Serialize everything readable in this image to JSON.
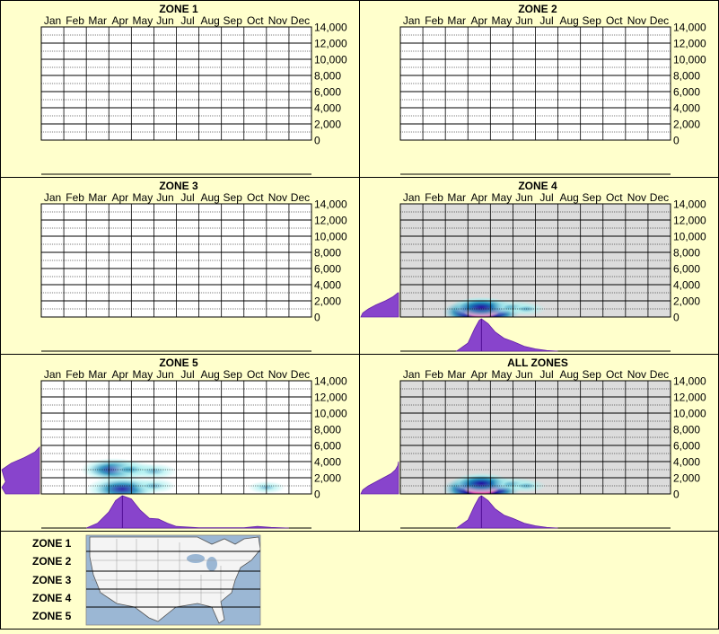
{
  "months": [
    "Jan",
    "Feb",
    "Mar",
    "Apr",
    "May",
    "Jun",
    "Jul",
    "Aug",
    "Sep",
    "Oct",
    "Nov",
    "Dec"
  ],
  "y_ticks": [
    "14,000",
    "12,000",
    "10,000",
    "8,000",
    "6,000",
    "4,000",
    "2,000",
    "0"
  ],
  "legend": {
    "zones": [
      "ZONE 1",
      "ZONE 2",
      "ZONE 3",
      "ZONE 4",
      "ZONE 5"
    ],
    "map_icon": "us-map-icon"
  },
  "colors": {
    "background": "#ffffcc",
    "plot_with_data": "#dcdcdc",
    "plot_empty": "#ffffff",
    "density_fill": "#8844cc",
    "density_stroke": "#6622aa",
    "heat_low": "#aef0f0",
    "heat_mid": "#1a8ab8",
    "heat_high": "#1a10a0",
    "heat_peak": "#ff1493"
  },
  "chart_data": [
    {
      "type": "heatmap",
      "title": "ZONE 1",
      "has_data": false,
      "x_categories": [
        "Jan",
        "Feb",
        "Mar",
        "Apr",
        "May",
        "Jun",
        "Jul",
        "Aug",
        "Sep",
        "Oct",
        "Nov",
        "Dec"
      ],
      "ylim": [
        0,
        14000
      ],
      "hotspots": [],
      "month_density": [],
      "elev_density": []
    },
    {
      "type": "heatmap",
      "title": "ZONE 2",
      "has_data": false,
      "x_categories": [
        "Jan",
        "Feb",
        "Mar",
        "Apr",
        "May",
        "Jun",
        "Jul",
        "Aug",
        "Sep",
        "Oct",
        "Nov",
        "Dec"
      ],
      "ylim": [
        0,
        14000
      ],
      "hotspots": [],
      "month_density": [],
      "elev_density": []
    },
    {
      "type": "heatmap",
      "title": "ZONE 3",
      "has_data": false,
      "x_categories": [
        "Jan",
        "Feb",
        "Mar",
        "Apr",
        "May",
        "Jun",
        "Jul",
        "Aug",
        "Sep",
        "Oct",
        "Nov",
        "Dec"
      ],
      "ylim": [
        0,
        14000
      ],
      "hotspots": [],
      "month_density": [],
      "elev_density": []
    },
    {
      "type": "heatmap",
      "title": "ZONE 4",
      "has_data": true,
      "x_categories": [
        "Jan",
        "Feb",
        "Mar",
        "Apr",
        "May",
        "Jun",
        "Jul",
        "Aug",
        "Sep",
        "Oct",
        "Nov",
        "Dec"
      ],
      "ylim": [
        0,
        14000
      ],
      "hotspots": [
        {
          "month": 3.6,
          "elev": 600,
          "level": 1.0
        },
        {
          "month": 3.6,
          "elev": 1200,
          "level": 0.6
        },
        {
          "month": 5.0,
          "elev": 1200,
          "level": 0.25
        },
        {
          "month": 5.6,
          "elev": 1000,
          "level": 0.15
        }
      ],
      "month_density": [
        [
          2.5,
          0
        ],
        [
          3.0,
          0.25
        ],
        [
          3.3,
          0.7
        ],
        [
          3.5,
          0.95
        ],
        [
          3.6,
          1.0
        ],
        [
          3.9,
          0.85
        ],
        [
          4.2,
          0.6
        ],
        [
          4.6,
          0.4
        ],
        [
          5.0,
          0.3
        ],
        [
          5.5,
          0.15
        ],
        [
          6.0,
          0.07
        ],
        [
          6.5,
          0.02
        ],
        [
          7.0,
          0
        ]
      ],
      "elev_density": [
        [
          0,
          1.0
        ],
        [
          500,
          0.95
        ],
        [
          1000,
          0.8
        ],
        [
          1500,
          0.6
        ],
        [
          2000,
          0.35
        ],
        [
          2500,
          0.15
        ],
        [
          3000,
          0.02
        ]
      ]
    },
    {
      "type": "heatmap",
      "title": "ZONE 5",
      "has_data": false,
      "x_categories": [
        "Jan",
        "Feb",
        "Mar",
        "Apr",
        "May",
        "Jun",
        "Jul",
        "Aug",
        "Sep",
        "Oct",
        "Nov",
        "Dec"
      ],
      "ylim": [
        0,
        14000
      ],
      "hotspots": [
        {
          "month": 3.6,
          "elev": 600,
          "level": 0.85
        },
        {
          "month": 3.2,
          "elev": 3000,
          "level": 0.7
        },
        {
          "month": 4.0,
          "elev": 3000,
          "level": 0.4
        },
        {
          "month": 5.0,
          "elev": 2800,
          "level": 0.3
        },
        {
          "month": 5.0,
          "elev": 1000,
          "level": 0.25
        },
        {
          "month": 10.0,
          "elev": 800,
          "level": 0.1
        }
      ],
      "month_density": [
        [
          2.0,
          0
        ],
        [
          2.5,
          0.15
        ],
        [
          3.0,
          0.5
        ],
        [
          3.3,
          0.85
        ],
        [
          3.6,
          1.0
        ],
        [
          4.0,
          0.9
        ],
        [
          4.4,
          0.55
        ],
        [
          4.8,
          0.3
        ],
        [
          5.2,
          0.28
        ],
        [
          5.6,
          0.15
        ],
        [
          6.0,
          0.05
        ],
        [
          7.0,
          0.01
        ],
        [
          9.0,
          0.01
        ],
        [
          9.6,
          0.05
        ],
        [
          10.2,
          0.02
        ],
        [
          11.0,
          0
        ]
      ],
      "elev_density": [
        [
          0,
          0.9
        ],
        [
          800,
          1.0
        ],
        [
          1500,
          0.9
        ],
        [
          2200,
          0.95
        ],
        [
          3000,
          1.0
        ],
        [
          3800,
          0.75
        ],
        [
          4500,
          0.4
        ],
        [
          5200,
          0.12
        ],
        [
          5800,
          0
        ]
      ]
    },
    {
      "type": "heatmap",
      "title": "ALL ZONES",
      "has_data": true,
      "x_categories": [
        "Jan",
        "Feb",
        "Mar",
        "Apr",
        "May",
        "Jun",
        "Jul",
        "Aug",
        "Sep",
        "Oct",
        "Nov",
        "Dec"
      ],
      "ylim": [
        0,
        14000
      ],
      "hotspots": [
        {
          "month": 3.6,
          "elev": 600,
          "level": 1.0
        },
        {
          "month": 3.6,
          "elev": 1300,
          "level": 0.6
        },
        {
          "month": 5.0,
          "elev": 1200,
          "level": 0.25
        },
        {
          "month": 5.6,
          "elev": 1000,
          "level": 0.15
        }
      ],
      "month_density": [
        [
          2.5,
          0
        ],
        [
          3.0,
          0.25
        ],
        [
          3.3,
          0.7
        ],
        [
          3.5,
          0.95
        ],
        [
          3.6,
          1.0
        ],
        [
          3.9,
          0.85
        ],
        [
          4.2,
          0.6
        ],
        [
          4.6,
          0.4
        ],
        [
          5.0,
          0.3
        ],
        [
          5.5,
          0.15
        ],
        [
          6.0,
          0.07
        ],
        [
          6.5,
          0.02
        ],
        [
          7.0,
          0
        ]
      ],
      "elev_density": [
        [
          0,
          1.0
        ],
        [
          500,
          0.95
        ],
        [
          1000,
          0.8
        ],
        [
          1500,
          0.6
        ],
        [
          2000,
          0.4
        ],
        [
          2500,
          0.2
        ],
        [
          3000,
          0.08
        ],
        [
          3500,
          0.02
        ],
        [
          4000,
          0
        ]
      ]
    }
  ]
}
